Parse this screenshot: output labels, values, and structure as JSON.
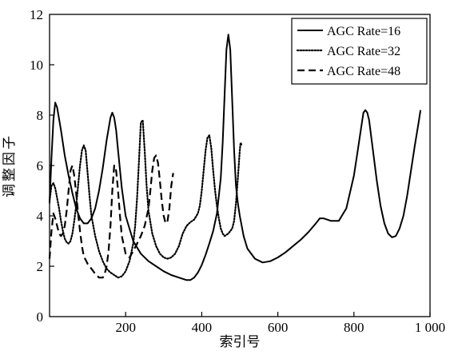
{
  "chart_data": {
    "type": "line",
    "xlabel": "索引号",
    "ylabel": "调整因子",
    "xlim": [
      0,
      1000
    ],
    "ylim": [
      0,
      12
    ],
    "x_ticks": [
      {
        "value": 200,
        "label": "200"
      },
      {
        "value": 400,
        "label": "400"
      },
      {
        "value": 600,
        "label": "600"
      },
      {
        "value": 800,
        "label": "800"
      },
      {
        "value": 1000,
        "label": "1 000"
      }
    ],
    "y_ticks": [
      {
        "value": 0,
        "label": "0"
      },
      {
        "value": 2,
        "label": "2"
      },
      {
        "value": 4,
        "label": "4"
      },
      {
        "value": 6,
        "label": "6"
      },
      {
        "value": 8,
        "label": "8"
      },
      {
        "value": 10,
        "label": "10"
      },
      {
        "value": 12,
        "label": "12"
      }
    ],
    "grid": false,
    "legend": "top-right",
    "series": [
      {
        "name": "AGC Rate=16",
        "style": "solid",
        "color": "#000000",
        "x": [
          0,
          5,
          10,
          15,
          20,
          30,
          40,
          50,
          60,
          70,
          80,
          90,
          100,
          110,
          120,
          130,
          140,
          150,
          160,
          165,
          170,
          175,
          180,
          190,
          200,
          220,
          240,
          260,
          280,
          300,
          320,
          340,
          360,
          370,
          380,
          390,
          400,
          410,
          420,
          430,
          440,
          450,
          455,
          460,
          465,
          470,
          475,
          480,
          485,
          490,
          495,
          500,
          510,
          520,
          540,
          560,
          580,
          600,
          620,
          640,
          660,
          680,
          700,
          705,
          710,
          720,
          730,
          740,
          760,
          780,
          800,
          810,
          820,
          825,
          830,
          835,
          840,
          850,
          860,
          870,
          880,
          890,
          900,
          910,
          920,
          930,
          940,
          950,
          960,
          970,
          975
        ],
        "y": [
          4.5,
          6.3,
          7.8,
          8.5,
          8.3,
          7.4,
          6.4,
          5.6,
          4.9,
          4.3,
          3.9,
          3.7,
          3.7,
          3.9,
          4.3,
          5.0,
          5.9,
          7.0,
          7.9,
          8.1,
          7.9,
          7.4,
          6.6,
          5.1,
          4.0,
          3.0,
          2.5,
          2.2,
          2.0,
          1.8,
          1.65,
          1.55,
          1.45,
          1.45,
          1.55,
          1.75,
          2.05,
          2.45,
          2.9,
          3.4,
          4.1,
          5.5,
          6.9,
          8.8,
          10.6,
          11.2,
          10.6,
          8.6,
          6.6,
          5.2,
          4.5,
          4.0,
          3.2,
          2.7,
          2.3,
          2.15,
          2.2,
          2.35,
          2.55,
          2.8,
          3.05,
          3.35,
          3.7,
          3.8,
          3.9,
          3.9,
          3.85,
          3.8,
          3.8,
          4.3,
          5.6,
          6.6,
          7.6,
          8.1,
          8.2,
          8.1,
          7.8,
          6.6,
          5.4,
          4.4,
          3.7,
          3.3,
          3.15,
          3.2,
          3.5,
          4.0,
          4.8,
          5.8,
          6.8,
          7.7,
          8.2
        ]
      },
      {
        "name": "AGC Rate=32",
        "style": "dotted",
        "color": "#000000",
        "x": [
          0,
          5,
          10,
          15,
          20,
          25,
          30,
          35,
          40,
          45,
          50,
          55,
          60,
          65,
          70,
          75,
          80,
          85,
          90,
          95,
          100,
          105,
          110,
          120,
          130,
          140,
          150,
          160,
          170,
          180,
          190,
          200,
          210,
          220,
          225,
          230,
          235,
          240,
          245,
          250,
          255,
          260,
          270,
          280,
          290,
          300,
          310,
          320,
          330,
          340,
          350,
          360,
          370,
          380,
          390,
          395,
          400,
          405,
          410,
          415,
          420,
          425,
          430,
          435,
          440,
          445,
          450,
          455,
          460,
          470,
          480,
          485,
          490,
          495,
          500,
          502,
          505
        ],
        "y": [
          4.6,
          5.2,
          5.3,
          5.1,
          4.7,
          4.3,
          3.8,
          3.4,
          3.1,
          2.95,
          2.9,
          3.0,
          3.3,
          3.8,
          4.4,
          5.2,
          6.0,
          6.6,
          6.8,
          6.6,
          5.7,
          4.8,
          4.0,
          3.2,
          2.6,
          2.2,
          1.9,
          1.75,
          1.65,
          1.55,
          1.6,
          1.8,
          2.2,
          2.9,
          3.6,
          4.7,
          6.2,
          7.7,
          7.8,
          6.6,
          5.2,
          4.2,
          3.3,
          2.8,
          2.5,
          2.35,
          2.3,
          2.35,
          2.5,
          2.8,
          3.3,
          3.6,
          3.75,
          3.85,
          4.1,
          4.4,
          5.0,
          5.8,
          6.6,
          7.1,
          7.2,
          6.7,
          5.8,
          5.0,
          4.4,
          3.9,
          3.5,
          3.3,
          3.2,
          3.3,
          3.5,
          3.8,
          4.5,
          5.5,
          6.6,
          6.9,
          6.8
        ]
      },
      {
        "name": "AGC Rate=48",
        "style": "dashed",
        "color": "#000000",
        "x": [
          0,
          5,
          10,
          15,
          20,
          25,
          30,
          35,
          40,
          45,
          50,
          55,
          60,
          65,
          70,
          75,
          80,
          85,
          90,
          100,
          110,
          120,
          130,
          140,
          145,
          150,
          155,
          160,
          165,
          170,
          175,
          180,
          185,
          190,
          200,
          210,
          220,
          230,
          240,
          250,
          260,
          265,
          270,
          275,
          280,
          285,
          290,
          295,
          300,
          305,
          310,
          315,
          320,
          325
        ],
        "y": [
          2.3,
          3.4,
          4.1,
          3.9,
          3.6,
          3.3,
          3.2,
          3.3,
          3.6,
          4.2,
          5.0,
          5.8,
          6.0,
          5.6,
          4.9,
          4.1,
          3.4,
          2.8,
          2.4,
          2.1,
          1.9,
          1.7,
          1.55,
          1.55,
          1.7,
          2.0,
          2.6,
          3.6,
          5.0,
          6.0,
          5.8,
          5.0,
          4.0,
          3.2,
          2.5,
          2.35,
          2.6,
          2.9,
          3.2,
          3.6,
          4.3,
          5.0,
          5.8,
          6.3,
          6.4,
          6.1,
          5.4,
          4.6,
          4.0,
          3.7,
          3.8,
          4.3,
          5.2,
          5.7
        ]
      }
    ]
  }
}
